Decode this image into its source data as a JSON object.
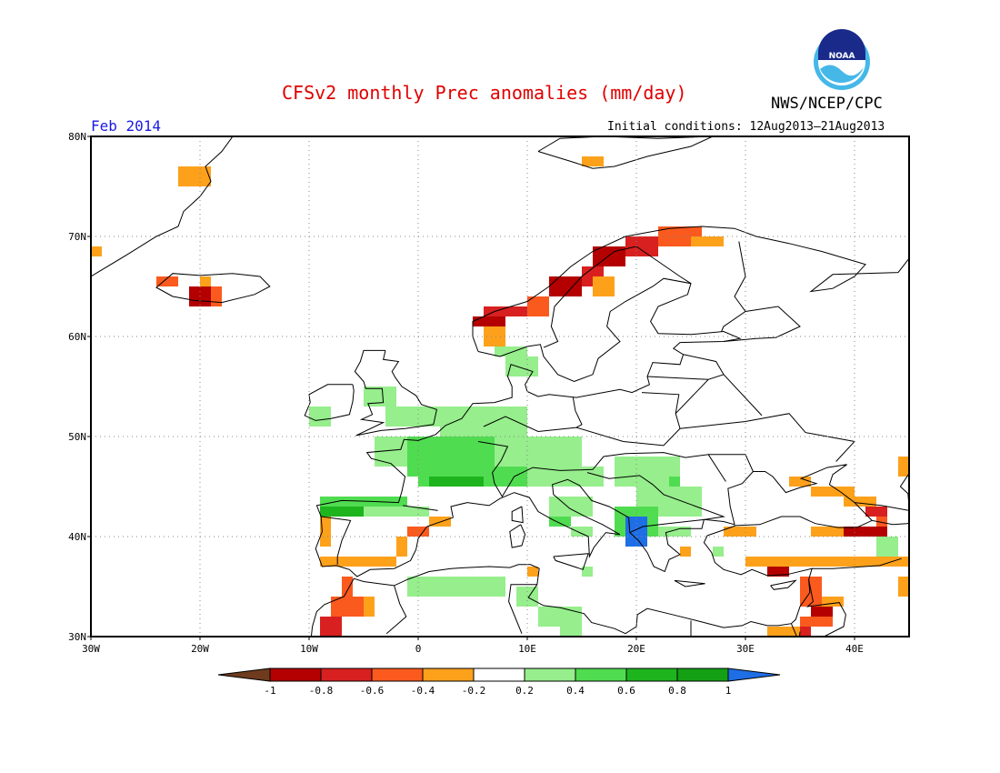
{
  "title": "CFSv2 monthly Prec anomalies (mm/day)",
  "agency": "NWS/NCEP/CPC",
  "logo_text": "NOAA",
  "month_label": "Feb 2014",
  "initial_conditions": "Initial conditions: 12Aug2013–21Aug2013",
  "map": {
    "lon_range": [
      -30,
      45
    ],
    "lat_range": [
      30,
      80
    ],
    "lat_ticks": [
      {
        "value": 80,
        "label": "80N"
      },
      {
        "value": 70,
        "label": "70N"
      },
      {
        "value": 60,
        "label": "60N"
      },
      {
        "value": 50,
        "label": "50N"
      },
      {
        "value": 40,
        "label": "40N"
      },
      {
        "value": 30,
        "label": "30N"
      }
    ],
    "lon_ticks": [
      {
        "value": -30,
        "label": "30W"
      },
      {
        "value": -20,
        "label": "20W"
      },
      {
        "value": -10,
        "label": "10W"
      },
      {
        "value": 0,
        "label": "0"
      },
      {
        "value": 10,
        "label": "10E"
      },
      {
        "value": 20,
        "label": "20E"
      },
      {
        "value": 30,
        "label": "30E"
      },
      {
        "value": 40,
        "label": "40E"
      }
    ],
    "grid": "dotted",
    "cell_size_deg": 1
  },
  "colorbar": {
    "labels": [
      "-1",
      "-0.8",
      "-0.6",
      "-0.4",
      "-0.2",
      "0.2",
      "0.4",
      "0.6",
      "0.8",
      "1"
    ],
    "colors": [
      "#6e3b1f",
      "#b40000",
      "#d82020",
      "#fa5a1e",
      "#fda11b",
      "#ffffff",
      "#96ee8c",
      "#50dc50",
      "#1eb41e",
      "#14a014",
      "#1e6ee6"
    ]
  },
  "anomaly_colors": {
    "-4": "#b40000",
    "-3": "#d82020",
    "-2": "#fa5a1e",
    "-1": "#fda11b",
    "1": "#96ee8c",
    "2": "#50dc50",
    "3": "#1eb41e",
    "4": "#1e6ee6"
  },
  "anomaly_regions": [
    {
      "level": -1,
      "lon": [
        -30,
        -29
      ],
      "lat": [
        68,
        69
      ]
    },
    {
      "level": -1,
      "lon": [
        -22,
        -19
      ],
      "lat": [
        75,
        77
      ]
    },
    {
      "level": -2,
      "lon": [
        -24,
        -22
      ],
      "lat": [
        65,
        66
      ]
    },
    {
      "level": -1,
      "lon": [
        -20,
        -19
      ],
      "lat": [
        65,
        66
      ]
    },
    {
      "level": -4,
      "lon": [
        -21,
        -19
      ],
      "lat": [
        63,
        65
      ]
    },
    {
      "level": -2,
      "lon": [
        -19,
        -18
      ],
      "lat": [
        63,
        65
      ]
    },
    {
      "level": -1,
      "lon": [
        15,
        17
      ],
      "lat": [
        77,
        78
      ]
    },
    {
      "level": -4,
      "lon": [
        5,
        8
      ],
      "lat": [
        61,
        62
      ]
    },
    {
      "level": -3,
      "lon": [
        6,
        10
      ],
      "lat": [
        62,
        63
      ]
    },
    {
      "level": -2,
      "lon": [
        10,
        12
      ],
      "lat": [
        62,
        64
      ]
    },
    {
      "level": -4,
      "lon": [
        12,
        15
      ],
      "lat": [
        64,
        66
      ]
    },
    {
      "level": -3,
      "lon": [
        15,
        17
      ],
      "lat": [
        65,
        67
      ]
    },
    {
      "level": -4,
      "lon": [
        16,
        19
      ],
      "lat": [
        67,
        69
      ]
    },
    {
      "level": -3,
      "lon": [
        19,
        22
      ],
      "lat": [
        68,
        70
      ]
    },
    {
      "level": -2,
      "lon": [
        22,
        26
      ],
      "lat": [
        69,
        71
      ]
    },
    {
      "level": -1,
      "lon": [
        25,
        28
      ],
      "lat": [
        69,
        70
      ]
    },
    {
      "level": -1,
      "lon": [
        6,
        8
      ],
      "lat": [
        59,
        61
      ]
    },
    {
      "level": -1,
      "lon": [
        16,
        18
      ],
      "lat": [
        64,
        66
      ]
    },
    {
      "level": -3,
      "lon": [
        -9,
        -7
      ],
      "lat": [
        30,
        32
      ]
    },
    {
      "level": -2,
      "lon": [
        -8,
        -5
      ],
      "lat": [
        32,
        34
      ]
    },
    {
      "level": -1,
      "lon": [
        -5,
        -4
      ],
      "lat": [
        32,
        34
      ]
    },
    {
      "level": -2,
      "lon": [
        -7,
        -6
      ],
      "lat": [
        34,
        36
      ]
    },
    {
      "level": -1,
      "lon": [
        -9,
        -2
      ],
      "lat": [
        37,
        38
      ]
    },
    {
      "level": -1,
      "lon": [
        -2,
        -1
      ],
      "lat": [
        38,
        40
      ]
    },
    {
      "level": -2,
      "lon": [
        -1,
        1
      ],
      "lat": [
        40,
        41
      ]
    },
    {
      "level": -1,
      "lon": [
        1,
        3
      ],
      "lat": [
        41,
        42
      ]
    },
    {
      "level": -1,
      "lon": [
        -9,
        -8
      ],
      "lat": [
        39,
        42
      ]
    },
    {
      "level": -1,
      "lon": [
        10,
        11
      ],
      "lat": [
        36,
        37
      ]
    },
    {
      "level": -1,
      "lon": [
        24,
        25
      ],
      "lat": [
        38,
        39
      ]
    },
    {
      "level": -1,
      "lon": [
        28,
        31
      ],
      "lat": [
        40,
        41
      ]
    },
    {
      "level": -1,
      "lon": [
        30,
        45
      ],
      "lat": [
        37,
        38
      ]
    },
    {
      "level": -1,
      "lon": [
        36,
        40
      ],
      "lat": [
        40,
        41
      ]
    },
    {
      "level": -4,
      "lon": [
        39,
        43
      ],
      "lat": [
        40,
        41
      ]
    },
    {
      "level": -1,
      "lon": [
        34,
        36
      ],
      "lat": [
        45,
        46
      ]
    },
    {
      "level": -1,
      "lon": [
        36,
        40
      ],
      "lat": [
        44,
        45
      ]
    },
    {
      "level": -1,
      "lon": [
        39,
        42
      ],
      "lat": [
        43,
        44
      ]
    },
    {
      "level": -3,
      "lon": [
        41,
        43
      ],
      "lat": [
        42,
        43
      ]
    },
    {
      "level": -2,
      "lon": [
        42,
        43
      ],
      "lat": [
        41,
        42
      ]
    },
    {
      "level": -1,
      "lon": [
        44,
        45
      ],
      "lat": [
        46,
        48
      ]
    },
    {
      "level": -1,
      "lon": [
        44,
        45
      ],
      "lat": [
        34,
        36
      ]
    },
    {
      "level": -4,
      "lon": [
        32,
        34
      ],
      "lat": [
        36,
        37
      ]
    },
    {
      "level": -2,
      "lon": [
        35,
        37
      ],
      "lat": [
        33,
        36
      ]
    },
    {
      "level": -4,
      "lon": [
        36,
        38
      ],
      "lat": [
        32,
        33
      ]
    },
    {
      "level": -2,
      "lon": [
        35,
        38
      ],
      "lat": [
        31,
        32
      ]
    },
    {
      "level": -3,
      "lon": [
        35,
        36
      ],
      "lat": [
        30,
        31
      ]
    },
    {
      "level": -1,
      "lon": [
        32,
        35
      ],
      "lat": [
        30,
        31
      ]
    },
    {
      "level": -1,
      "lon": [
        37,
        39
      ],
      "lat": [
        33,
        34
      ]
    },
    {
      "level": 1,
      "lon": [
        7,
        10
      ],
      "lat": [
        58,
        59
      ]
    },
    {
      "level": 1,
      "lon": [
        8,
        11
      ],
      "lat": [
        56,
        58
      ]
    },
    {
      "level": 1,
      "lon": [
        -10,
        -8
      ],
      "lat": [
        51,
        53
      ]
    },
    {
      "level": 1,
      "lon": [
        -5,
        -2
      ],
      "lat": [
        53,
        55
      ]
    },
    {
      "level": 1,
      "lon": [
        -3,
        2
      ],
      "lat": [
        51,
        53
      ]
    },
    {
      "level": 1,
      "lon": [
        2,
        10
      ],
      "lat": [
        50,
        53
      ]
    },
    {
      "level": 1,
      "lon": [
        -4,
        15
      ],
      "lat": [
        47,
        50
      ]
    },
    {
      "level": 2,
      "lon": [
        -1,
        7
      ],
      "lat": [
        46,
        50
      ]
    },
    {
      "level": 2,
      "lon": [
        0,
        10
      ],
      "lat": [
        45,
        47
      ]
    },
    {
      "level": 3,
      "lon": [
        1,
        6
      ],
      "lat": [
        45,
        46
      ]
    },
    {
      "level": 1,
      "lon": [
        10,
        17
      ],
      "lat": [
        45,
        47
      ]
    },
    {
      "level": 1,
      "lon": [
        18,
        24
      ],
      "lat": [
        45,
        48
      ]
    },
    {
      "level": 1,
      "lon": [
        20,
        26
      ],
      "lat": [
        42,
        45
      ]
    },
    {
      "level": 2,
      "lon": [
        23,
        24
      ],
      "lat": [
        45,
        46
      ]
    },
    {
      "level": 2,
      "lon": [
        -9,
        -1
      ],
      "lat": [
        43,
        44
      ]
    },
    {
      "level": 3,
      "lon": [
        -9,
        -5
      ],
      "lat": [
        42,
        43
      ]
    },
    {
      "level": 1,
      "lon": [
        -5,
        1
      ],
      "lat": [
        42,
        43
      ]
    },
    {
      "level": 1,
      "lon": [
        12,
        16
      ],
      "lat": [
        42,
        44
      ]
    },
    {
      "level": 2,
      "lon": [
        12,
        14
      ],
      "lat": [
        41,
        42
      ]
    },
    {
      "level": 1,
      "lon": [
        14,
        16
      ],
      "lat": [
        40,
        41
      ]
    },
    {
      "level": 2,
      "lon": [
        18,
        22
      ],
      "lat": [
        40,
        43
      ]
    },
    {
      "level": 4,
      "lon": [
        19,
        21
      ],
      "lat": [
        39,
        42
      ]
    },
    {
      "level": 1,
      "lon": [
        22,
        25
      ],
      "lat": [
        40,
        41
      ]
    },
    {
      "level": 1,
      "lon": [
        15,
        16
      ],
      "lat": [
        36,
        37
      ]
    },
    {
      "level": 1,
      "lon": [
        -1,
        8
      ],
      "lat": [
        34,
        36
      ]
    },
    {
      "level": 1,
      "lon": [
        9,
        11
      ],
      "lat": [
        33,
        35
      ]
    },
    {
      "level": 1,
      "lon": [
        11,
        15
      ],
      "lat": [
        31,
        33
      ]
    },
    {
      "level": 1,
      "lon": [
        13,
        15
      ],
      "lat": [
        30,
        31
      ]
    },
    {
      "level": 1,
      "lon": [
        42,
        44
      ],
      "lat": [
        38,
        40
      ]
    },
    {
      "level": 1,
      "lon": [
        27,
        28
      ],
      "lat": [
        38,
        39
      ]
    }
  ]
}
